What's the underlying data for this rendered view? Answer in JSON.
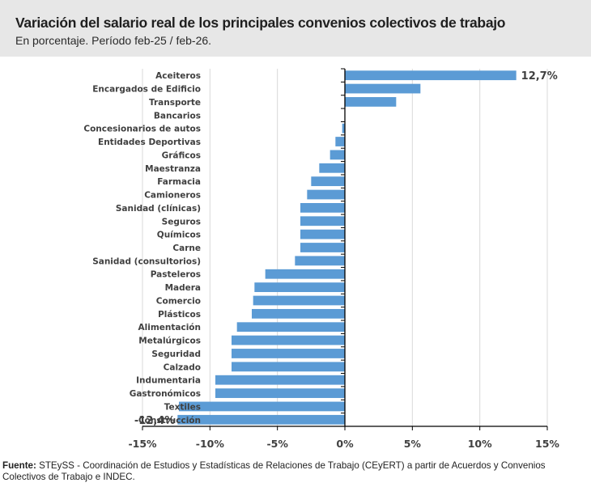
{
  "header": {
    "title": "Variación del salario real de los principales convenios colectivos de trabajo",
    "subtitle": "En porcentaje. Período feb-25 / feb-26."
  },
  "footer": {
    "label": "Fuente:",
    "text": " STEySS - Coordinación de Estudios y Estadísticas de Relaciones de Trabajo (CEyERT) a partir de Acuerdos y Convenios Colectivos de Trabajo e INDEC."
  },
  "colors": {
    "bar": "#5b9bd5",
    "grid": "#d9d9d9",
    "axis": "#000000",
    "text": "#404040"
  },
  "chart_data": {
    "type": "bar",
    "orientation": "horizontal",
    "title": "Variación del salario real de los principales convenios colectivos de trabajo",
    "subtitle": "En porcentaje. Período feb-25 / feb-26.",
    "xlabel": "",
    "ylabel": "",
    "xlim": [
      -15,
      15
    ],
    "xticks": [
      -15,
      -10,
      -5,
      0,
      5,
      10,
      15
    ],
    "xtick_labels": [
      "-15%",
      "-10%",
      "-5%",
      "0%",
      "5%",
      "10%",
      "15%"
    ],
    "grid": "vertical",
    "legend": "none",
    "categories": [
      "Aceiteros",
      "Encargados de Edificio",
      "Transporte",
      "Bancarios",
      "Concesionarios de autos",
      "Entidades Deportivas",
      "Gráficos",
      "Maestranza",
      "Farmacia",
      "Camioneros",
      "Sanidad (clínicas)",
      "Seguros",
      "Químicos",
      "Carne",
      "Sanidad (consultorios)",
      "Pasteleros",
      "Madera",
      "Comercio",
      "Plásticos",
      "Alimentación",
      "Metalúrgicos",
      "Seguridad",
      "Calzado",
      "Indumentaria",
      "Gastronómicos",
      "Textiles",
      "Construcción"
    ],
    "values": [
      12.7,
      5.6,
      3.8,
      0.0,
      -0.2,
      -0.7,
      -1.1,
      -1.9,
      -2.5,
      -2.8,
      -3.3,
      -3.3,
      -3.3,
      -3.3,
      -3.7,
      -5.9,
      -6.7,
      -6.8,
      -6.9,
      -8.0,
      -8.4,
      -8.4,
      -8.4,
      -9.6,
      -9.6,
      -12.3,
      -12.4
    ],
    "data_labels": [
      {
        "category": "Aceiteros",
        "text": "12,7%"
      },
      {
        "category": "Construcción",
        "text": "-12,4%"
      }
    ]
  }
}
